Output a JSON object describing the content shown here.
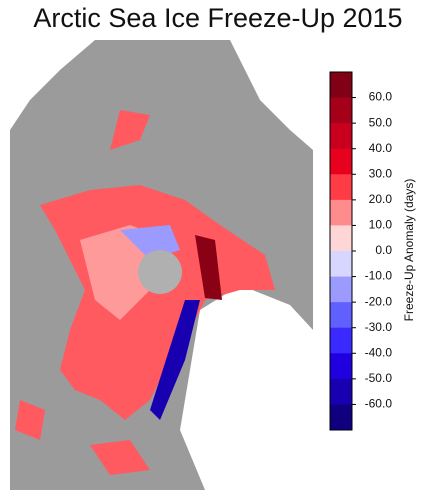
{
  "title": "Arctic Sea Ice Freeze-Up 2015",
  "colorbar": {
    "label": "Freeze-Up Anomaly (days)",
    "lim": [
      -70,
      70
    ],
    "ticks": [
      {
        "value": 60,
        "label": "60.0"
      },
      {
        "value": 50,
        "label": "50.0"
      },
      {
        "value": 40,
        "label": "40.0"
      },
      {
        "value": 30,
        "label": "30.0"
      },
      {
        "value": 20,
        "label": "20.0"
      },
      {
        "value": 10,
        "label": "10.0"
      },
      {
        "value": 0,
        "label": "0.0"
      },
      {
        "value": -10,
        "label": "-10.0"
      },
      {
        "value": -20,
        "label": "-20.0"
      },
      {
        "value": -30,
        "label": "-30.0"
      },
      {
        "value": -40,
        "label": "-40.0"
      },
      {
        "value": -50,
        "label": "-50.0"
      },
      {
        "value": -60,
        "label": "-60.0"
      }
    ],
    "colors": [
      "#800015",
      "#a5001a",
      "#c8001e",
      "#e8001f",
      "#ff3b45",
      "#ff8c8c",
      "#ffd6d6",
      "#d6d6ff",
      "#9a9aff",
      "#6060ff",
      "#3a2aff",
      "#2000e0",
      "#1800b0",
      "#100080"
    ]
  }
}
